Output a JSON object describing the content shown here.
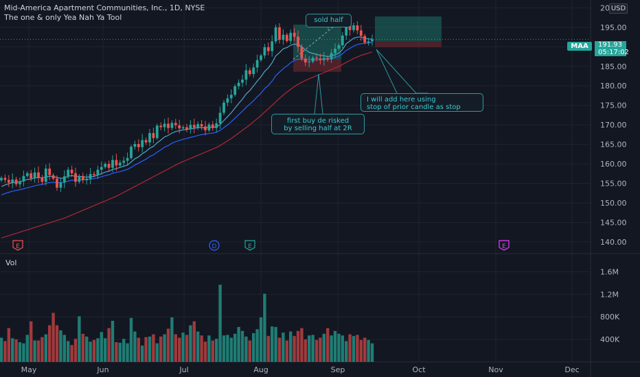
{
  "header": {
    "title": "Mid-America Apartment Communities, Inc., 1D, NYSE",
    "indicator": "The one & only Yea Nah Ya Tool",
    "currency": "USD"
  },
  "price_axis": {
    "ticks": [
      "200.00",
      "195.00",
      "190.00",
      "185.00",
      "180.00",
      "175.00",
      "170.00",
      "165.00",
      "160.00",
      "155.00",
      "150.00",
      "145.00",
      "140.00"
    ],
    "symbol": "MAA",
    "last_price": "191.93",
    "countdown": "05:17:02"
  },
  "volume_axis": {
    "label": "Vol",
    "ticks": [
      "1.6M",
      "1.2M",
      "800K",
      "400K"
    ]
  },
  "time_axis": {
    "ticks": [
      "May",
      "Jun",
      "Jul",
      "Aug",
      "Sep",
      "Oct",
      "Nov",
      "Dec"
    ]
  },
  "events": [
    "E",
    "D",
    "E",
    "E"
  ],
  "annotations": {
    "sold": "sold half",
    "first_buy": "first buy de risked\nby selling half at 2R",
    "add": "I will add here using\nstop of prior candle as stop"
  },
  "colors": {
    "background": "#131722",
    "up": "#26a69a",
    "down": "#ef5350",
    "ma_fast": "#4fa8c9",
    "ma_mid": "#2962ff",
    "ma_slow": "#b22833",
    "annotation": "#2f9aa0",
    "earnings": "#ef5350",
    "dividend": "#2962ff",
    "earnings_upcoming": "#e040fb"
  },
  "chart_data": {
    "type": "candlestick",
    "symbol": "MAA",
    "exchange": "NYSE",
    "interval": "1D",
    "price_range": [
      137,
      202
    ],
    "volume_range": [
      0,
      1800000
    ],
    "months": [
      "May",
      "Jun",
      "Jul",
      "Aug",
      "Sep",
      "Oct",
      "Nov",
      "Dec"
    ],
    "closes": [
      156.4,
      155.9,
      155.2,
      156.0,
      154.8,
      155.5,
      156.9,
      157.6,
      156.3,
      157.8,
      156.5,
      155.4,
      158.8,
      157.1,
      156.2,
      153.9,
      155.2,
      156.8,
      158.5,
      157.6,
      155.4,
      156.9,
      155.8,
      156.2,
      157.4,
      157.1,
      158.5,
      159.2,
      160.0,
      159.0,
      161.0,
      159.6,
      160.3,
      160.8,
      161.5,
      164.4,
      165.1,
      164.3,
      166.1,
      165.5,
      167.9,
      166.6,
      169.8,
      169.4,
      170.3,
      169.2,
      170.5,
      169.9,
      169.1,
      169.4,
      168.9,
      170.0,
      169.3,
      170.2,
      169.6,
      168.6,
      170.1,
      169.2,
      170.4,
      173.1,
      175.7,
      176.8,
      177.7,
      179.9,
      180.8,
      181.6,
      184.0,
      183.0,
      184.7,
      186.6,
      187.8,
      189.9,
      188.9,
      191.4,
      195.0,
      191.8,
      193.1,
      191.5,
      193.6,
      192.6,
      190.0,
      187.0,
      186.0,
      186.2,
      187.2,
      187.0,
      186.6,
      187.1,
      186.8,
      188.4,
      189.5,
      190.4,
      192.9,
      196.5,
      194.3,
      195.5,
      194.2,
      192.8,
      191.1,
      191.4,
      191.9
    ],
    "volumes": [
      430000,
      370000,
      600000,
      420000,
      400000,
      350000,
      330000,
      480000,
      720000,
      380000,
      380000,
      440000,
      490000,
      650000,
      870000,
      650000,
      560000,
      480000,
      370000,
      300000,
      410000,
      810000,
      500000,
      450000,
      360000,
      390000,
      420000,
      530000,
      420000,
      600000,
      730000,
      350000,
      340000,
      410000,
      330000,
      780000,
      540000,
      430000,
      290000,
      440000,
      450000,
      490000,
      330000,
      450000,
      490000,
      590000,
      790000,
      490000,
      430000,
      520000,
      480000,
      650000,
      720000,
      540000,
      470000,
      360000,
      470000,
      380000,
      410000,
      1370000,
      470000,
      480000,
      430000,
      500000,
      620000,
      550000,
      450000,
      380000,
      510000,
      580000,
      790000,
      1210000,
      460000,
      630000,
      620000,
      430000,
      520000,
      380000,
      540000,
      460000,
      550000,
      600000,
      400000,
      470000,
      480000,
      390000,
      430000,
      500000,
      600000,
      470000,
      550000,
      500000,
      470000,
      370000,
      490000,
      460000,
      480000,
      390000,
      430000,
      390000,
      330000
    ],
    "ema_fast": [
      154.2,
      154.6,
      154.9,
      155.2,
      155.3,
      155.4,
      155.7,
      156.0,
      156.1,
      156.4,
      156.5,
      156.4,
      156.7,
      156.8,
      156.8,
      156.5,
      156.3,
      156.4,
      156.8,
      157.0,
      156.8,
      156.8,
      156.7,
      156.6,
      156.7,
      156.8,
      157.1,
      157.5,
      157.9,
      158.1,
      158.6,
      158.8,
      159.1,
      159.4,
      159.7,
      160.5,
      161.3,
      161.8,
      162.6,
      163.2,
      164.0,
      164.5,
      165.4,
      166.1,
      166.9,
      167.3,
      167.9,
      168.3,
      168.5,
      168.7,
      168.8,
      169.0,
      169.1,
      169.3,
      169.3,
      169.2,
      169.4,
      169.3,
      169.5,
      170.1,
      171.1,
      172.1,
      173.1,
      174.3,
      175.5,
      176.6,
      177.9,
      178.8,
      180.0,
      181.2,
      182.3,
      183.7,
      184.6,
      185.9,
      187.7,
      188.5,
      189.5,
      189.8,
      190.4,
      190.7,
      190.6,
      190.0,
      189.2,
      188.6,
      188.3,
      188.1,
      187.8,
      187.7,
      187.5,
      187.7,
      188.0,
      188.4,
      189.3,
      190.8,
      191.5,
      192.2,
      192.5,
      192.5,
      192.2,
      192.0,
      192.0
    ],
    "ema_mid": [
      152.0,
      152.4,
      152.7,
      153.0,
      153.2,
      153.4,
      153.6,
      153.9,
      154.1,
      154.4,
      154.6,
      154.7,
      155.0,
      155.2,
      155.3,
      155.2,
      155.2,
      155.3,
      155.6,
      155.8,
      155.8,
      155.9,
      155.9,
      156.0,
      156.1,
      156.2,
      156.4,
      156.7,
      157.0,
      157.2,
      157.6,
      157.8,
      158.0,
      158.3,
      158.6,
      159.1,
      159.7,
      160.2,
      160.7,
      161.2,
      161.9,
      162.3,
      163.0,
      163.6,
      164.3,
      164.7,
      165.3,
      165.7,
      166.0,
      166.3,
      166.5,
      166.8,
      167.0,
      167.3,
      167.5,
      167.6,
      167.8,
      167.9,
      168.1,
      168.6,
      169.3,
      170.0,
      170.8,
      171.7,
      172.6,
      173.5,
      174.5,
      175.3,
      176.2,
      177.2,
      178.1,
      179.3,
      180.1,
      181.2,
      182.6,
      183.5,
      184.4,
      185.1,
      185.9,
      186.5,
      186.8,
      186.8,
      186.7,
      186.7,
      186.7,
      186.7,
      186.7,
      186.8,
      186.8,
      187.0,
      187.3,
      187.6,
      188.2,
      189.1,
      189.6,
      190.2,
      190.6,
      190.8,
      190.9,
      191.0,
      191.1
    ],
    "ma_slow": [
      141.0,
      141.3,
      141.6,
      141.9,
      142.2,
      142.5,
      142.8,
      143.1,
      143.4,
      143.7,
      144.0,
      144.3,
      144.6,
      144.9,
      145.2,
      145.5,
      145.8,
      146.1,
      146.5,
      146.9,
      147.3,
      147.7,
      148.1,
      148.5,
      148.9,
      149.3,
      149.7,
      150.1,
      150.5,
      150.9,
      151.3,
      151.7,
      152.2,
      152.7,
      153.2,
      153.7,
      154.2,
      154.7,
      155.2,
      155.7,
      156.2,
      156.7,
      157.2,
      157.7,
      158.2,
      158.7,
      159.2,
      159.7,
      160.2,
      160.6,
      161.0,
      161.4,
      161.8,
      162.2,
      162.6,
      163.0,
      163.4,
      163.8,
      164.2,
      164.7,
      165.3,
      165.9,
      166.5,
      167.2,
      167.9,
      168.6,
      169.3,
      170.0,
      170.8,
      171.6,
      172.4,
      173.3,
      174.1,
      175.0,
      175.9,
      176.8,
      177.6,
      178.4,
      179.1,
      179.8,
      180.4,
      180.9,
      181.4,
      181.8,
      182.2,
      182.6,
      183.0,
      183.4,
      183.8,
      184.2,
      184.6,
      185.0,
      185.5,
      186.0,
      186.5,
      187.0,
      187.4,
      187.8,
      188.1,
      188.4,
      188.7
    ],
    "trade_zones": [
      {
        "label": "first buy",
        "entry": 186.8,
        "target": 195.7,
        "stop": 183.6
      },
      {
        "label": "add",
        "entry": 191.4,
        "target": 197.8,
        "stop": 189.9
      }
    ]
  }
}
